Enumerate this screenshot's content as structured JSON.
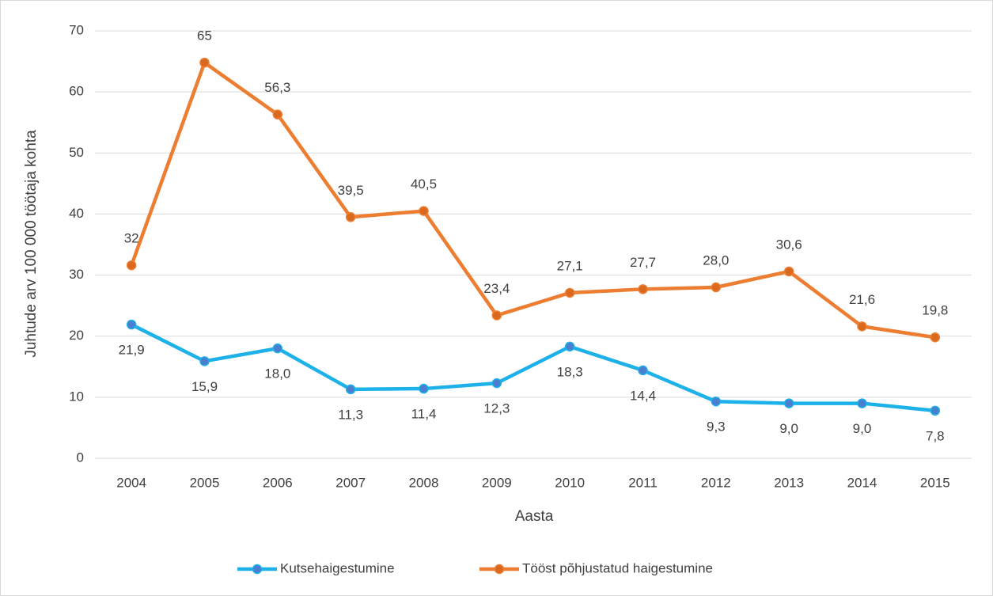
{
  "chart_data": {
    "type": "line",
    "xlabel": "Aasta",
    "ylabel": "Juhtude arv 100 000 töötaja kohta",
    "categories": [
      "2004",
      "2005",
      "2006",
      "2007",
      "2008",
      "2009",
      "2010",
      "2011",
      "2012",
      "2013",
      "2014",
      "2015"
    ],
    "series": [
      {
        "name": "Kutsehaigestumine",
        "color": "#1cb1e8",
        "marker_color": "#4a7fcf",
        "values": [
          21.9,
          15.9,
          18.0,
          11.3,
          11.4,
          12.3,
          18.3,
          14.4,
          9.3,
          9.0,
          9.0,
          7.8
        ],
        "value_labels": [
          "21,9",
          "15,9",
          "18,0",
          "11,3",
          "11,4",
          "12,3",
          "18,3",
          "14,4",
          "9,3",
          "9,0",
          "9,0",
          "7,8"
        ]
      },
      {
        "name": "Tööst põhjustatud haigestumine",
        "color": "#ed7d31",
        "marker_color": "#d8691f",
        "values": [
          31.6,
          64.8,
          56.3,
          39.5,
          40.5,
          23.4,
          27.1,
          27.7,
          28.0,
          30.6,
          21.6,
          19.8
        ],
        "value_labels": [
          "32",
          "65",
          "56,3",
          "39,5",
          "40,5",
          "23,4",
          "27,1",
          "27,7",
          "28,0",
          "30,6",
          "21,6",
          "19,8"
        ]
      }
    ],
    "ylim": [
      0,
      70
    ],
    "yticks": [
      0,
      10,
      20,
      30,
      40,
      50,
      60,
      70
    ],
    "grid": true,
    "legend": "bottom"
  }
}
